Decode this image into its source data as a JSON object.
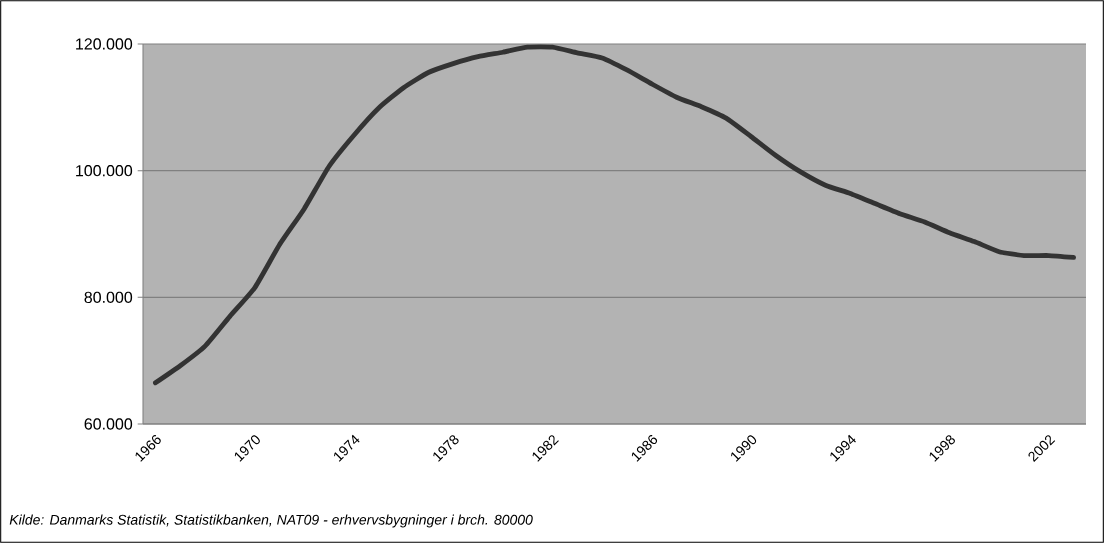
{
  "chart_data": {
    "type": "line",
    "categories": [
      "1966",
      null,
      null,
      null,
      "1970",
      null,
      null,
      null,
      "1974",
      null,
      null,
      null,
      "1978",
      null,
      null,
      null,
      "1982",
      null,
      null,
      null,
      "1986",
      null,
      null,
      null,
      "1990",
      null,
      null,
      null,
      "1994",
      null,
      null,
      null,
      "1998",
      null,
      null,
      null,
      "2002",
      null
    ],
    "values": [
      66500,
      69200,
      72300,
      77000,
      81500,
      88300,
      94000,
      100700,
      105600,
      109900,
      113100,
      115500,
      116900,
      118000,
      118700,
      119500,
      119500,
      118600,
      117800,
      115900,
      113700,
      111600,
      110100,
      108300,
      105400,
      102400,
      99800,
      97700,
      96400,
      94800,
      93200,
      91900,
      90200,
      88800,
      87200,
      86600,
      86600,
      86300
    ],
    "color": "#333333",
    "ylim": [
      60000,
      120000
    ],
    "yticks": [
      {
        "value": 60000,
        "label": "60.000"
      },
      {
        "value": 80000,
        "label": "80.000"
      },
      {
        "value": 100000,
        "label": "100.000"
      },
      {
        "value": 120000,
        "label": "120.000"
      }
    ],
    "grid": "y",
    "annotations": [
      "Kilde: Danmarks Statistik, Statistikbanken, NAT09 - erhvervsbygninger i brch. 80000"
    ]
  }
}
